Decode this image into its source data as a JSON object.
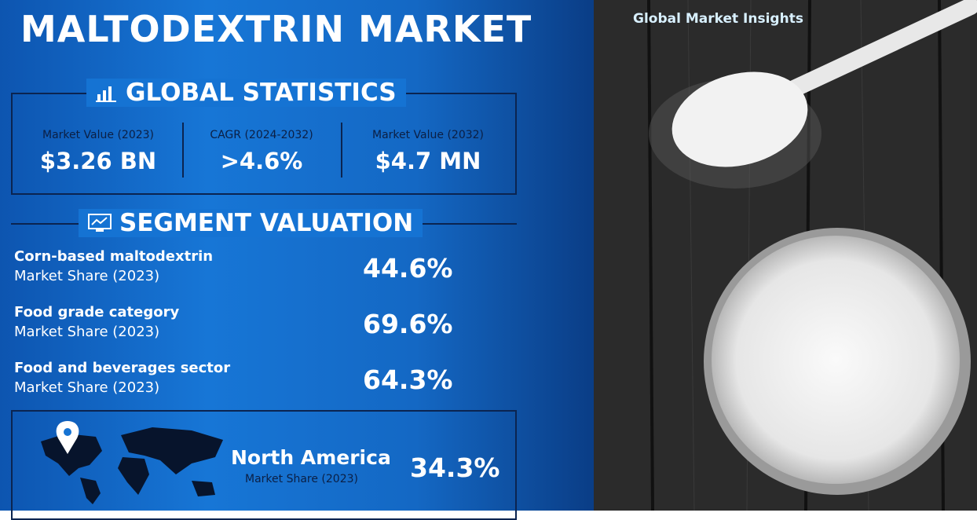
{
  "title": "MALTODEXTRIN MARKET",
  "brand": "Global Market Insights",
  "global_statistics": {
    "heading": "GLOBAL STATISTICS",
    "items": [
      {
        "label": "Market Value (2023)",
        "value": "$3.26 BN"
      },
      {
        "label": "CAGR (2024-2032)",
        "value": ">4.6%"
      },
      {
        "label": "Market Value (2032)",
        "value": "$4.7 MN"
      }
    ]
  },
  "segment_valuation": {
    "heading": "SEGMENT VALUATION",
    "items": [
      {
        "name": "Corn-based maltodextrin",
        "sub": "Market Share (2023)",
        "value": "44.6%"
      },
      {
        "name": "Food grade category",
        "sub": "Market Share (2023)",
        "value": "69.6%"
      },
      {
        "name": "Food and beverages sector",
        "sub": "Market Share (2023)",
        "value": "64.3%"
      }
    ]
  },
  "region": {
    "name": "North America",
    "sub": "Market Share (2023)",
    "value": "34.3%"
  }
}
